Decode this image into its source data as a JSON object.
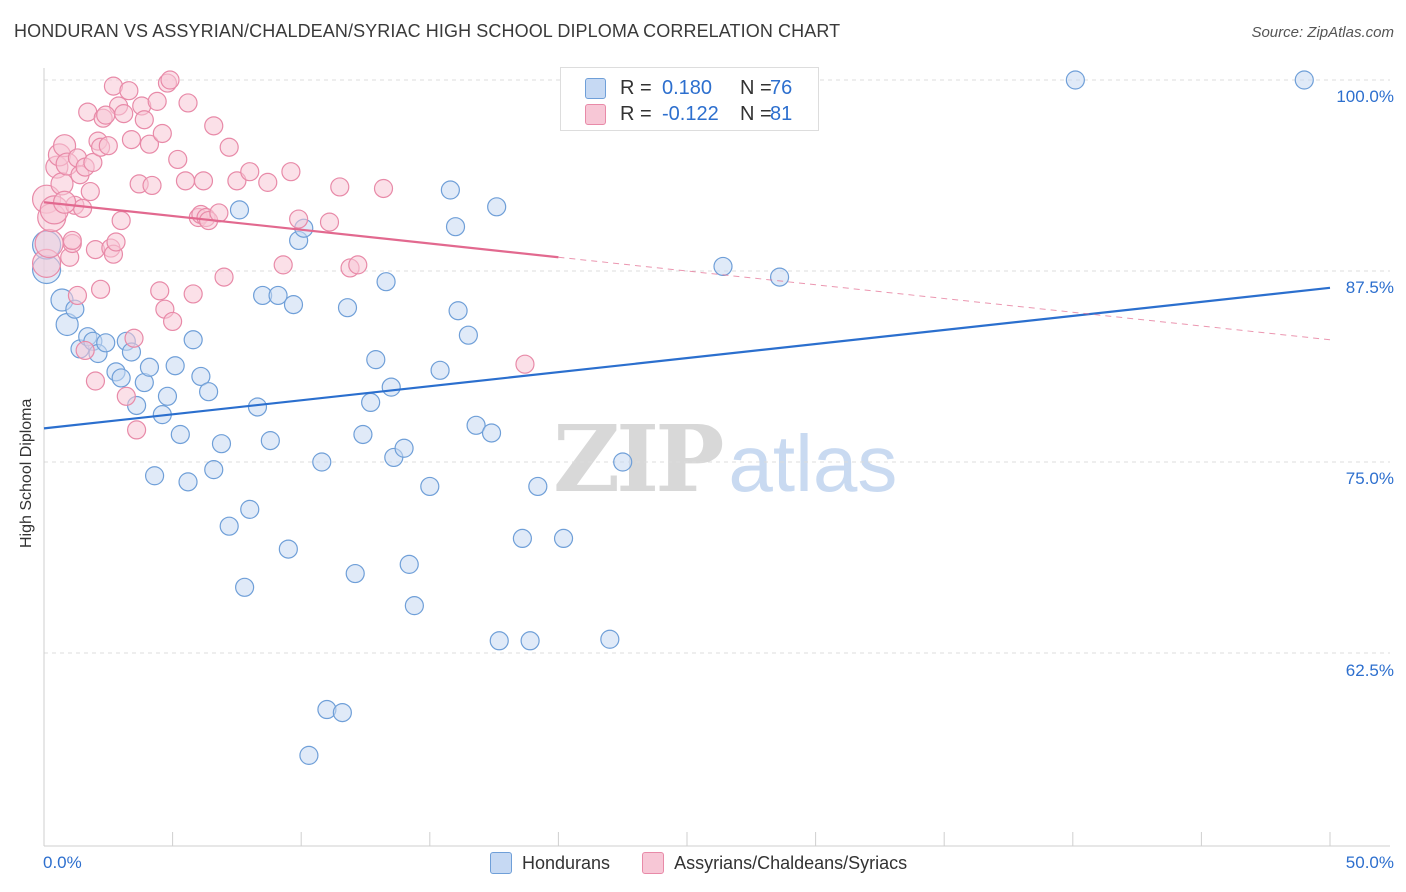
{
  "title": "HONDURAN VS ASSYRIAN/CHALDEAN/SYRIAC HIGH SCHOOL DIPLOMA CORRELATION CHART",
  "source": "Source: ZipAtlas.com",
  "watermark": {
    "zip": "ZIP",
    "atlas": "atlas"
  },
  "colors": {
    "blue": "#6f9fd8",
    "blue_fill": "#c6d9f3",
    "blue_line": "#2b6fce",
    "pink": "#e88aa8",
    "pink_fill": "#f7c7d6",
    "pink_line": "#e2698f",
    "tick_text": "#2d6fce"
  },
  "legend": {
    "rows": [
      {
        "r_label": "R =",
        "r_value": " 0.180",
        "n_label": "N =",
        "n_value": "76"
      },
      {
        "r_label": "R =",
        "r_value": "-0.122",
        "n_label": "N =",
        "n_value": "81"
      }
    ]
  },
  "bottom_legend": [
    "Hondurans",
    "Assyrians/Chaldeans/Syriacs"
  ],
  "chart_data": {
    "type": "scatter",
    "xlabel": "",
    "ylabel": "High School Diploma",
    "xlim": [
      0,
      50
    ],
    "ylim": [
      52,
      101.5
    ],
    "x_tick_labels": [
      "0.0%",
      "50.0%"
    ],
    "y_ticks": [
      62.5,
      75.0,
      87.5,
      100.0
    ],
    "y_tick_labels": [
      "62.5%",
      "75.0%",
      "87.5%",
      "100.0%"
    ],
    "grid": true,
    "series": [
      {
        "name": "Hondurans",
        "trend": {
          "x0": 0,
          "y0": 77.2,
          "x1": 50,
          "y1": 86.4,
          "solid_to": 50
        },
        "points": [
          [
            0.1,
            87.6
          ],
          [
            0.1,
            89.2
          ],
          [
            0.7,
            85.6
          ],
          [
            0.9,
            84.0
          ],
          [
            1.2,
            85.0
          ],
          [
            1.4,
            82.4
          ],
          [
            1.7,
            83.2
          ],
          [
            1.9,
            82.9
          ],
          [
            2.1,
            82.1
          ],
          [
            2.4,
            82.8
          ],
          [
            2.8,
            80.9
          ],
          [
            3.0,
            80.5
          ],
          [
            3.2,
            82.9
          ],
          [
            3.4,
            82.2
          ],
          [
            3.6,
            78.7
          ],
          [
            3.9,
            80.2
          ],
          [
            4.1,
            81.2
          ],
          [
            4.3,
            74.1
          ],
          [
            4.6,
            78.1
          ],
          [
            4.8,
            79.3
          ],
          [
            5.1,
            81.3
          ],
          [
            5.3,
            76.8
          ],
          [
            5.6,
            73.7
          ],
          [
            5.8,
            83.0
          ],
          [
            6.1,
            80.6
          ],
          [
            6.4,
            79.6
          ],
          [
            6.6,
            74.5
          ],
          [
            6.9,
            76.2
          ],
          [
            7.2,
            70.8
          ],
          [
            7.6,
            91.5
          ],
          [
            7.8,
            66.8
          ],
          [
            8.0,
            71.9
          ],
          [
            8.3,
            78.6
          ],
          [
            8.5,
            85.9
          ],
          [
            8.8,
            76.4
          ],
          [
            9.1,
            85.9
          ],
          [
            9.5,
            69.3
          ],
          [
            9.7,
            85.3
          ],
          [
            9.9,
            89.5
          ],
          [
            10.1,
            90.3
          ],
          [
            10.8,
            75.0
          ],
          [
            11.0,
            58.8
          ],
          [
            11.6,
            58.6
          ],
          [
            11.8,
            85.1
          ],
          [
            12.1,
            67.7
          ],
          [
            12.4,
            76.8
          ],
          [
            12.7,
            78.9
          ],
          [
            12.9,
            81.7
          ],
          [
            13.3,
            86.8
          ],
          [
            13.5,
            79.9
          ],
          [
            13.6,
            75.3
          ],
          [
            14.0,
            75.9
          ],
          [
            14.2,
            68.3
          ],
          [
            14.4,
            65.6
          ],
          [
            15.0,
            73.4
          ],
          [
            15.4,
            81.0
          ],
          [
            15.8,
            92.8
          ],
          [
            16.0,
            90.4
          ],
          [
            16.1,
            84.9
          ],
          [
            16.5,
            83.3
          ],
          [
            16.8,
            77.4
          ],
          [
            17.4,
            76.9
          ],
          [
            17.6,
            91.7
          ],
          [
            17.7,
            63.3
          ],
          [
            18.6,
            70.0
          ],
          [
            18.9,
            63.3
          ],
          [
            19.2,
            73.4
          ],
          [
            20.2,
            70.0
          ],
          [
            22.0,
            63.4
          ],
          [
            22.5,
            75.0
          ],
          [
            26.4,
            87.8
          ],
          [
            27.5,
            100.0
          ],
          [
            28.6,
            87.1
          ],
          [
            40.1,
            100.0
          ],
          [
            49.0,
            100.0
          ],
          [
            10.3,
            55.8
          ]
        ],
        "sizes_note": "larger markers near x=0"
      },
      {
        "name": "Assyrians/Chaldeans/Syriacs",
        "trend": {
          "x0": 0,
          "y0": 92.0,
          "x1": 50,
          "y1": 83.0,
          "solid_to": 20
        },
        "points": [
          [
            0.1,
            92.2
          ],
          [
            0.1,
            88.0
          ],
          [
            0.2,
            89.3
          ],
          [
            0.3,
            91.0
          ],
          [
            0.4,
            91.5
          ],
          [
            0.5,
            94.3
          ],
          [
            0.6,
            95.1
          ],
          [
            0.7,
            93.2
          ],
          [
            0.8,
            95.7
          ],
          [
            0.9,
            94.5
          ],
          [
            1.0,
            88.4
          ],
          [
            1.1,
            89.3
          ],
          [
            1.2,
            91.8
          ],
          [
            1.3,
            94.9
          ],
          [
            1.3,
            85.9
          ],
          [
            1.4,
            93.8
          ],
          [
            1.5,
            91.6
          ],
          [
            1.6,
            94.3
          ],
          [
            1.6,
            82.3
          ],
          [
            1.7,
            97.9
          ],
          [
            1.8,
            92.7
          ],
          [
            1.9,
            94.6
          ],
          [
            2.0,
            88.9
          ],
          [
            2.0,
            80.3
          ],
          [
            2.1,
            96.0
          ],
          [
            2.2,
            95.6
          ],
          [
            2.3,
            97.5
          ],
          [
            2.5,
            95.7
          ],
          [
            2.6,
            89.0
          ],
          [
            2.7,
            99.6
          ],
          [
            2.7,
            88.6
          ],
          [
            2.8,
            89.4
          ],
          [
            2.9,
            98.3
          ],
          [
            3.0,
            90.8
          ],
          [
            3.1,
            97.8
          ],
          [
            3.2,
            79.3
          ],
          [
            3.3,
            99.3
          ],
          [
            3.4,
            96.1
          ],
          [
            3.5,
            83.1
          ],
          [
            3.6,
            77.1
          ],
          [
            3.7,
            93.2
          ],
          [
            3.8,
            98.3
          ],
          [
            3.9,
            97.4
          ],
          [
            4.1,
            95.8
          ],
          [
            4.2,
            93.1
          ],
          [
            4.4,
            98.6
          ],
          [
            4.5,
            86.2
          ],
          [
            4.6,
            96.5
          ],
          [
            4.7,
            85.0
          ],
          [
            4.8,
            99.8
          ],
          [
            4.9,
            100.0
          ],
          [
            5.0,
            84.2
          ],
          [
            5.2,
            94.8
          ],
          [
            5.5,
            93.4
          ],
          [
            5.6,
            98.5
          ],
          [
            5.8,
            86.0
          ],
          [
            6.0,
            91.0
          ],
          [
            6.1,
            91.2
          ],
          [
            6.2,
            93.4
          ],
          [
            6.3,
            91.0
          ],
          [
            6.4,
            90.8
          ],
          [
            6.6,
            97.0
          ],
          [
            6.8,
            91.3
          ],
          [
            7.0,
            87.1
          ],
          [
            7.2,
            95.6
          ],
          [
            7.5,
            93.4
          ],
          [
            8.0,
            94.0
          ],
          [
            8.7,
            93.3
          ],
          [
            9.3,
            87.9
          ],
          [
            9.6,
            94.0
          ],
          [
            9.9,
            90.9
          ],
          [
            11.1,
            90.7
          ],
          [
            11.5,
            93.0
          ],
          [
            11.9,
            87.7
          ],
          [
            12.2,
            87.9
          ],
          [
            13.2,
            92.9
          ],
          [
            18.7,
            81.4
          ],
          [
            2.2,
            86.3
          ],
          [
            1.1,
            89.5
          ],
          [
            0.8,
            92.0
          ],
          [
            2.4,
            97.7
          ]
        ]
      }
    ]
  }
}
